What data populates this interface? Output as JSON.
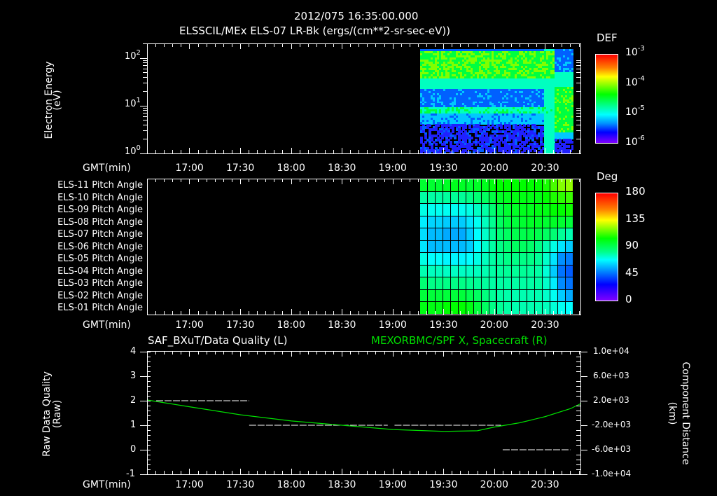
{
  "header": {
    "timestamp": "2012/075 16:35:00.000",
    "title": "ELSSCIL/MEx ELS-07 LR-Bk  (ergs/(cm**2-sr-sec-eV))"
  },
  "time_axis": {
    "label": "GMT(min)",
    "ticks": [
      "17:00",
      "17:30",
      "18:00",
      "18:30",
      "19:00",
      "19:30",
      "20:00",
      "20:30"
    ]
  },
  "panel1": {
    "ylabel": "Electron Energy",
    "yunit": "(eV)",
    "yticks": [
      {
        "base": "10",
        "exp": "2"
      },
      {
        "base": "10",
        "exp": "1"
      },
      {
        "base": "10",
        "exp": "0"
      }
    ],
    "colorbar": {
      "title": "DEF",
      "labels": [
        {
          "base": "10",
          "exp": "-3"
        },
        {
          "base": "10",
          "exp": "-4"
        },
        {
          "base": "10",
          "exp": "-5"
        },
        {
          "base": "10",
          "exp": "-6"
        }
      ]
    }
  },
  "panel2": {
    "rows": [
      "ELS-11 Pitch Angle",
      "ELS-10 Pitch Angle",
      "ELS-09 Pitch Angle",
      "ELS-08 Pitch Angle",
      "ELS-07 Pitch Angle",
      "ELS-06 Pitch Angle",
      "ELS-05 Pitch Angle",
      "ELS-04 Pitch Angle",
      "ELS-03 Pitch Angle",
      "ELS-02 Pitch Angle",
      "ELS-01 Pitch Angle"
    ],
    "colorbar": {
      "title": "Deg",
      "labels": [
        "180",
        "135",
        "90",
        "45",
        "0"
      ]
    }
  },
  "panel3": {
    "left_title": "SAF_BXuT/Data Quality (L)",
    "right_title": "MEXORBMC/SPF X, Spacecraft (R)",
    "right_title_color": "#00e000",
    "ylabel": "Raw Data Quality",
    "yunit": "(Raw)",
    "yticks_left": [
      "4",
      "3",
      "2",
      "1",
      "0",
      "-1"
    ],
    "yticks_right": [
      "1.0e+04",
      "6.0e+03",
      "2.0e+03",
      "-2.0e+03",
      "-6.0e+03",
      "-1.0e+04"
    ],
    "ylabel_right": "Component Distance",
    "yunit_right": "(km)"
  },
  "chart_data": [
    {
      "type": "heatmap",
      "title": "ELSSCIL/MEx ELS-07 LR-Bk (ergs/(cm**2-sr-sec-eV))",
      "xlabel": "GMT(min)",
      "ylabel": "Electron Energy (eV)",
      "yscale": "log",
      "ylim": [
        1,
        200
      ],
      "xlim": [
        "16:35",
        "20:51"
      ],
      "data_start": "19:15",
      "colorbar": {
        "label": "DEF",
        "scale": "log",
        "range": [
          1e-06,
          0.001
        ]
      },
      "features": [
        {
          "desc": "broad green band",
          "energy_eV": [
            40,
            150
          ],
          "time": [
            "19:15",
            "20:40"
          ],
          "level": 0.0001
        },
        {
          "desc": "cyan band",
          "energy_eV": [
            6,
            8
          ],
          "time": [
            "19:15",
            "20:35"
          ],
          "level": 2e-05
        },
        {
          "desc": "shift to green band",
          "energy_eV": [
            8,
            40
          ],
          "time": [
            "20:40",
            "20:50"
          ],
          "level": 0.0001
        }
      ]
    },
    {
      "type": "heatmap",
      "xlabel": "GMT(min)",
      "categories": [
        "ELS-11",
        "ELS-10",
        "ELS-09",
        "ELS-08",
        "ELS-07",
        "ELS-06",
        "ELS-05",
        "ELS-04",
        "ELS-03",
        "ELS-02",
        "ELS-01"
      ],
      "colorbar": {
        "label": "Deg",
        "range": [
          0,
          180
        ],
        "ticks": [
          0,
          45,
          90,
          135,
          180
        ]
      },
      "x": [
        "19:15",
        "19:20",
        "19:25",
        "19:30",
        "19:35",
        "19:40",
        "19:45",
        "19:50",
        "19:55",
        "20:00",
        "20:05",
        "20:10",
        "20:15",
        "20:20",
        "20:25",
        "20:30",
        "20:35",
        "20:40",
        "20:45",
        "20:50"
      ],
      "values": [
        [
          95,
          95,
          95,
          96,
          97,
          96,
          95,
          96,
          97,
          99,
          100,
          100,
          100,
          100,
          100,
          100,
          103,
          110,
          118,
          120
        ],
        [
          82,
          82,
          82,
          83,
          84,
          84,
          86,
          88,
          90,
          93,
          96,
          97,
          98,
          98,
          98,
          98,
          100,
          104,
          106,
          108
        ],
        [
          72,
          70,
          70,
          70,
          70,
          70,
          72,
          77,
          82,
          88,
          92,
          95,
          96,
          97,
          97,
          98,
          98,
          100,
          100,
          102
        ],
        [
          66,
          63,
          63,
          62,
          62,
          62,
          65,
          70,
          78,
          85,
          90,
          93,
          94,
          95,
          96,
          96,
          95,
          96,
          95,
          94
        ],
        [
          64,
          60,
          60,
          58,
          58,
          58,
          62,
          68,
          76,
          84,
          88,
          90,
          92,
          92,
          93,
          92,
          90,
          88,
          84,
          80
        ],
        [
          65,
          60,
          60,
          60,
          60,
          60,
          62,
          68,
          76,
          82,
          86,
          88,
          90,
          90,
          89,
          86,
          80,
          72,
          65,
          62
        ],
        [
          72,
          68,
          68,
          67,
          67,
          67,
          68,
          72,
          78,
          82,
          84,
          86,
          86,
          86,
          86,
          84,
          76,
          65,
          55,
          52
        ],
        [
          80,
          78,
          78,
          77,
          77,
          77,
          77,
          78,
          80,
          82,
          83,
          84,
          84,
          84,
          83,
          82,
          74,
          62,
          50,
          46
        ],
        [
          88,
          86,
          86,
          86,
          86,
          86,
          85,
          84,
          83,
          82,
          82,
          82,
          82,
          82,
          82,
          82,
          76,
          66,
          54,
          50
        ],
        [
          94,
          94,
          94,
          94,
          94,
          94,
          92,
          90,
          87,
          84,
          82,
          81,
          80,
          80,
          80,
          80,
          76,
          70,
          62,
          58
        ],
        [
          98,
          98,
          98,
          100,
          100,
          100,
          98,
          94,
          90,
          86,
          84,
          82,
          80,
          80,
          80,
          80,
          78,
          74,
          70,
          68
        ]
      ]
    },
    {
      "type": "line",
      "title": "SAF_BXuT/Data Quality (L) ; MEXORBMC/SPF X, Spacecraft (R)",
      "xlabel": "GMT(min)",
      "ylabel": "Raw Data Quality (Raw)",
      "ylim": [
        -1,
        4
      ],
      "ylabel_right": "Component Distance (km)",
      "ylim_right": [
        -10000,
        10000
      ],
      "series": [
        {
          "name": "Data Quality (L)",
          "axis": "left",
          "style": "dashed-segments",
          "color": "#ffffff",
          "points": [
            [
              "16:40",
              2
            ],
            [
              "17:35",
              2
            ],
            [
              "17:35",
              1
            ],
            [
              "18:57",
              1
            ],
            [
              "19:00",
              0
            ],
            [
              "19:01",
              1
            ],
            [
              "20:04",
              1
            ],
            [
              "20:05",
              0
            ],
            [
              "20:45",
              0
            ],
            [
              "20:46",
              1
            ]
          ]
        },
        {
          "name": "MEXORBMC/SPF X, Spacecraft (R)",
          "axis": "right",
          "color": "#00e000",
          "x": [
            "16:35",
            "17:00",
            "17:30",
            "18:00",
            "18:30",
            "19:00",
            "19:30",
            "19:50",
            "20:00",
            "20:15",
            "20:30",
            "20:45",
            "20:51"
          ],
          "values": [
            2100,
            1000,
            -300,
            -1300,
            -2000,
            -2700,
            -3000,
            -2900,
            -2300,
            -1600,
            -600,
            700,
            1500
          ]
        }
      ]
    }
  ]
}
